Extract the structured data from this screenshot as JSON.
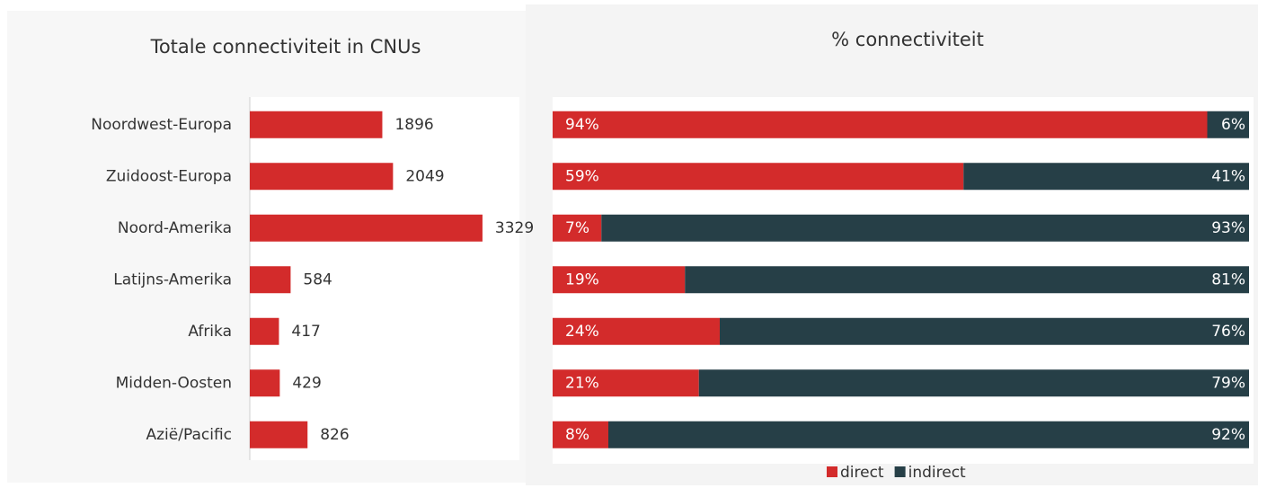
{
  "chart_data": [
    {
      "type": "bar",
      "title": "Totale connectiviteit in CNUs",
      "categories": [
        "Noordwest-Europa",
        "Zuidoost-Europa",
        "Noord-Amerika",
        "Latijns-Amerika",
        "Afrika",
        "Midden-Oosten",
        "Azië/Pacific"
      ],
      "values": [
        1896,
        2049,
        3329,
        584,
        417,
        429,
        826
      ],
      "color": "#d32b2b",
      "xlim": [
        0,
        3600
      ]
    },
    {
      "type": "stacked_bar",
      "title": "% connectiviteit",
      "categories": [
        "Noordwest-Europa",
        "Zuidoost-Europa",
        "Noord-Amerika",
        "Latijns-Amerika",
        "Afrika",
        "Midden-Oosten",
        "Azië/Pacific"
      ],
      "xlim": [
        0,
        100
      ],
      "series": [
        {
          "name": "direct",
          "color": "#d32b2b",
          "values": [
            94,
            59,
            7,
            19,
            24,
            21,
            8
          ],
          "value_labels": [
            "94%",
            "59%",
            "7%",
            "19%",
            "24%",
            "21%",
            "8%"
          ]
        },
        {
          "name": "indirect",
          "color": "#263f47",
          "values": [
            6,
            41,
            93,
            81,
            76,
            79,
            92
          ],
          "value_labels": [
            "6%",
            "41%",
            "93%",
            "81%",
            "76%",
            "79%",
            "92%"
          ]
        }
      ],
      "legend": "bottom"
    }
  ]
}
